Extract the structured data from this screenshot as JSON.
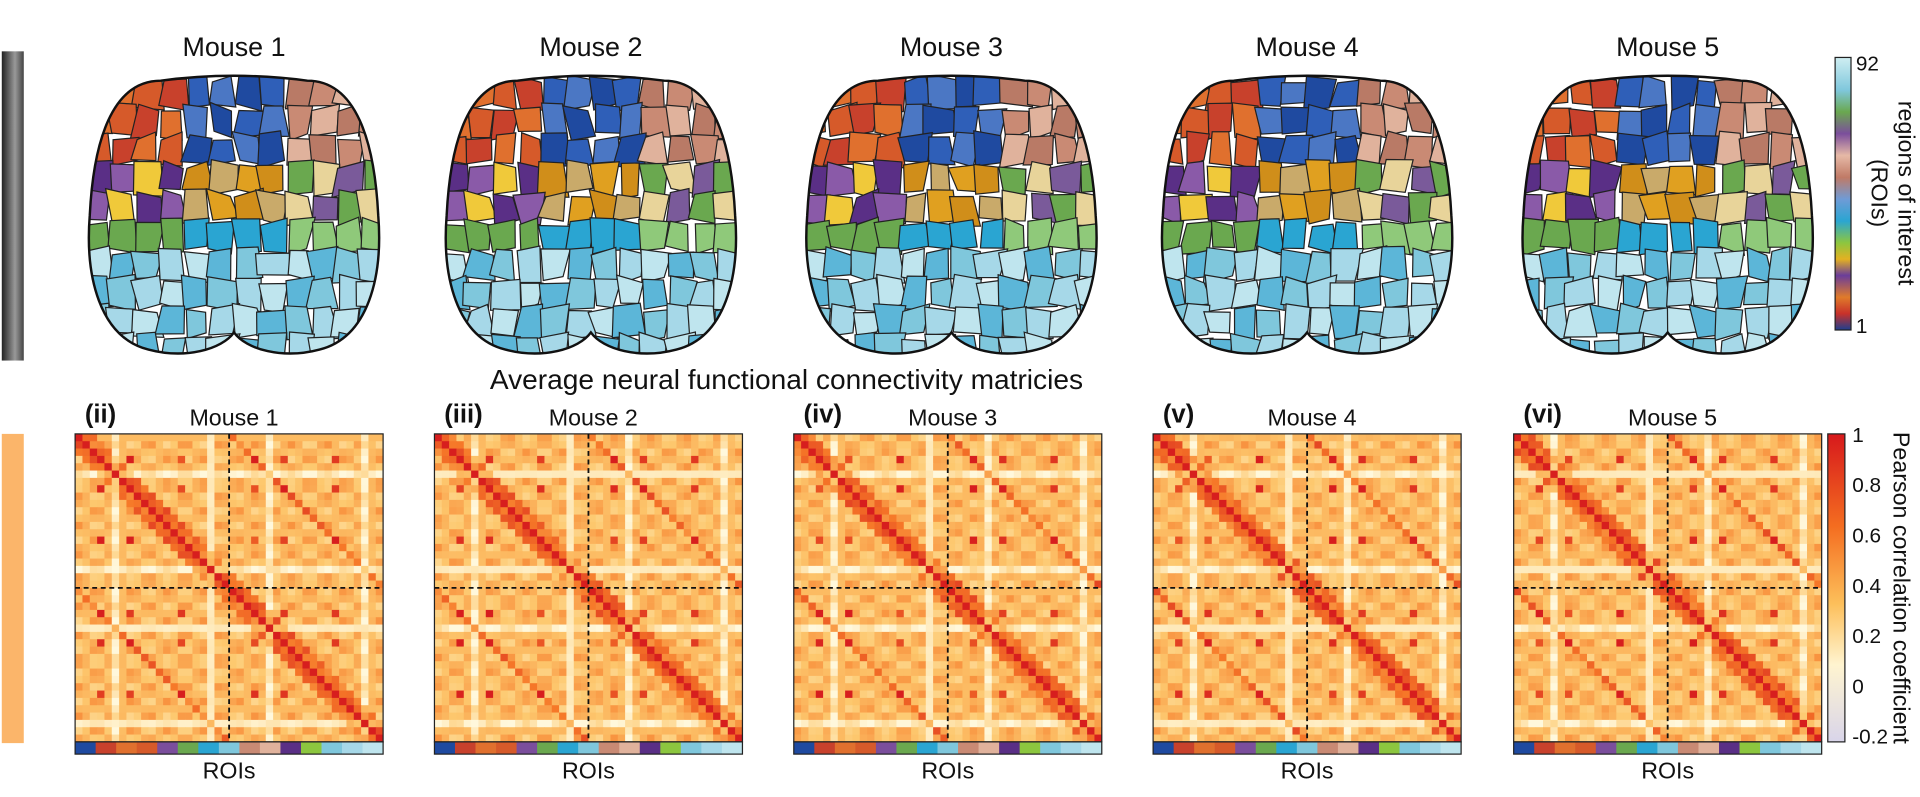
{
  "top_row": {
    "titles": [
      "Mouse 1",
      "Mouse 2",
      "Mouse 3",
      "Mouse 4",
      "Mouse 5"
    ],
    "colorbar": {
      "top": "92",
      "bottom": "1",
      "label": [
        "regions of interest",
        "(ROIs)"
      ]
    }
  },
  "middle_title": "Average neural functional connectivity matricies",
  "bottom_row": {
    "panels": [
      {
        "label": "(ii)",
        "title": "Mouse 1",
        "axis": "ROIs"
      },
      {
        "label": "(iii)",
        "title": "Mouse 2",
        "axis": "ROIs"
      },
      {
        "label": "(iv)",
        "title": "Mouse 3",
        "axis": "ROIs"
      },
      {
        "label": "(v)",
        "title": "Mouse 4",
        "axis": "ROIs"
      },
      {
        "label": "(vi)",
        "title": "Mouse 5",
        "axis": "ROIs"
      }
    ],
    "colorbar": {
      "ticks": [
        "1",
        "0.8",
        "0.6",
        "0.4",
        "0.2",
        "0",
        "-0.2"
      ],
      "label": "Pearson correlation coefficient"
    }
  }
}
